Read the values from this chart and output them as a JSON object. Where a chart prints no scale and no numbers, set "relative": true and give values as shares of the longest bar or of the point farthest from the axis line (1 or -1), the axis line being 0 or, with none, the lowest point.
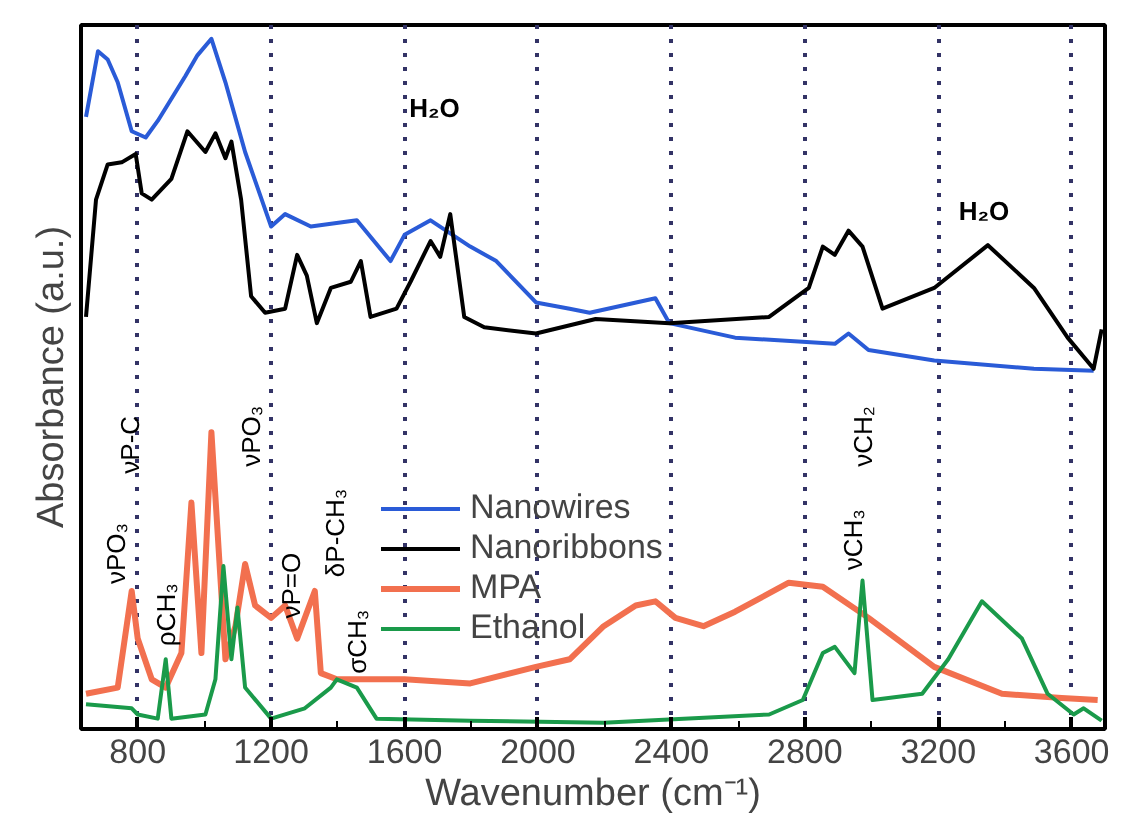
{
  "chart_data": {
    "type": "line",
    "relative": true,
    "xlabel": "Wavenumber (cm⁻¹)",
    "ylabel": "Absorbance (a.u.)",
    "xlim": [
      630,
      3700
    ],
    "xticks": [
      800,
      1200,
      1600,
      2000,
      2400,
      2800,
      3200,
      3600
    ],
    "grid": "x",
    "legend": "center",
    "tick_labels": "x",
    "line_style": "solid",
    "series": [
      {
        "name": "Nanowires",
        "color": "#2a5bd7",
        "x": [
          645,
          681,
          710,
          740,
          782,
          824,
          860,
          943,
          979,
          1021,
          1063,
          1122,
          1200,
          1242,
          1319,
          1457,
          1558,
          1600,
          1678,
          1797,
          1875,
          1994,
          2095,
          2155,
          2352,
          2394,
          2591,
          2890,
          2931,
          2991,
          3188,
          3487,
          3666
        ],
        "values": [
          0.887,
          0.982,
          0.97,
          0.937,
          0.866,
          0.857,
          0.881,
          0.946,
          0.976,
          1.0,
          0.937,
          0.836,
          0.728,
          0.746,
          0.728,
          0.737,
          0.678,
          0.716,
          0.737,
          0.699,
          0.678,
          0.618,
          0.609,
          0.603,
          0.624,
          0.588,
          0.567,
          0.558,
          0.573,
          0.549,
          0.534,
          0.522,
          0.519
        ]
      },
      {
        "name": "Nanoribbons",
        "color": "#000000",
        "x": [
          645,
          675,
          710,
          752,
          794,
          812,
          842,
          901,
          949,
          1003,
          1033,
          1063,
          1081,
          1110,
          1140,
          1182,
          1242,
          1278,
          1307,
          1337,
          1379,
          1439,
          1469,
          1498,
          1576,
          1618,
          1678,
          1707,
          1737,
          1779,
          1839,
          1994,
          2173,
          2394,
          2693,
          2812,
          2854,
          2890,
          2931,
          2973,
          3033,
          3188,
          3349,
          3487,
          3588,
          3666,
          3690
        ],
        "values": [
          0.597,
          0.767,
          0.818,
          0.821,
          0.833,
          0.776,
          0.767,
          0.797,
          0.866,
          0.836,
          0.863,
          0.827,
          0.851,
          0.767,
          0.627,
          0.603,
          0.609,
          0.687,
          0.657,
          0.588,
          0.639,
          0.648,
          0.678,
          0.597,
          0.609,
          0.648,
          0.707,
          0.684,
          0.746,
          0.597,
          0.582,
          0.573,
          0.594,
          0.588,
          0.597,
          0.639,
          0.699,
          0.687,
          0.722,
          0.699,
          0.609,
          0.639,
          0.701,
          0.639,
          0.567,
          0.522,
          0.579
        ]
      },
      {
        "name": "MPA",
        "color": "#f2704f",
        "x": [
          645,
          740,
          782,
          800,
          842,
          884,
          931,
          961,
          991,
          1021,
          1063,
          1093,
          1122,
          1152,
          1200,
          1242,
          1278,
          1331,
          1349,
          1397,
          1600,
          1797,
          1994,
          2095,
          2197,
          2293,
          2352,
          2412,
          2496,
          2591,
          2752,
          2854,
          2991,
          3188,
          3391,
          3570,
          3678
        ],
        "values": [
          0.051,
          0.06,
          0.2,
          0.131,
          0.072,
          0.06,
          0.11,
          0.328,
          0.11,
          0.43,
          0.101,
          0.149,
          0.239,
          0.179,
          0.161,
          0.179,
          0.131,
          0.2,
          0.081,
          0.072,
          0.072,
          0.066,
          0.09,
          0.101,
          0.149,
          0.179,
          0.185,
          0.161,
          0.149,
          0.17,
          0.212,
          0.206,
          0.161,
          0.09,
          0.051,
          0.045,
          0.042
        ]
      },
      {
        "name": "Ethanol",
        "color": "#1a9a4a",
        "x": [
          645,
          782,
          800,
          860,
          884,
          901,
          1003,
          1033,
          1057,
          1081,
          1099,
          1122,
          1200,
          1301,
          1379,
          1397,
          1457,
          1516,
          1797,
          2197,
          2693,
          2794,
          2854,
          2890,
          2949,
          2973,
          3003,
          3152,
          3230,
          3331,
          3451,
          3528,
          3606,
          3636,
          3690
        ],
        "values": [
          0.036,
          0.03,
          0.021,
          0.015,
          0.101,
          0.015,
          0.021,
          0.072,
          0.236,
          0.101,
          0.176,
          0.06,
          0.015,
          0.03,
          0.06,
          0.072,
          0.06,
          0.015,
          0.012,
          0.009,
          0.021,
          0.042,
          0.11,
          0.119,
          0.081,
          0.215,
          0.042,
          0.051,
          0.101,
          0.185,
          0.131,
          0.051,
          0.021,
          0.03,
          0.012
        ]
      }
    ],
    "annotations": [
      "νPO₃",
      "νP-C",
      "ρCH₃",
      "νPO₃",
      "νP=O",
      "δP-CH₃",
      "σCH₃",
      "νCH₃",
      "νCH₂",
      "H₂O",
      "H₂O"
    ]
  }
}
